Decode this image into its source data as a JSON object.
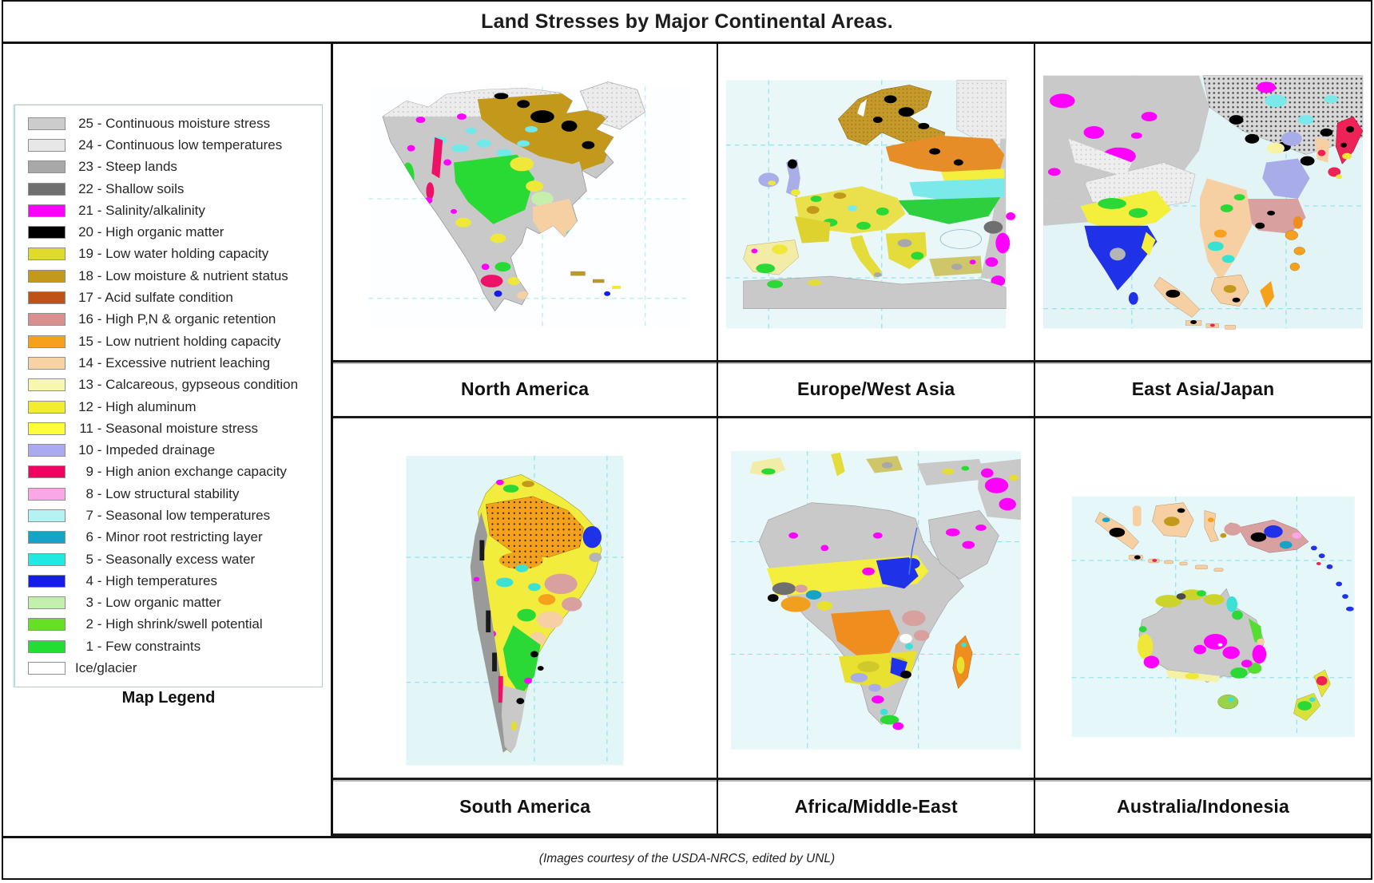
{
  "title": "Land Stresses by Major Continental Areas.",
  "footer_credit": "(Images courtesy of the USDA-NRCS, edited by UNL)",
  "legend": {
    "caption": "Map Legend",
    "items": [
      {
        "num": "25",
        "text": "Continuous moisture stress",
        "color": "#cccccc"
      },
      {
        "num": "24",
        "text": "Continuous low temperatures",
        "color": "#e7e7e7"
      },
      {
        "num": "23",
        "text": "Steep lands",
        "color": "#a8a8a8"
      },
      {
        "num": "22",
        "text": "Shallow soils",
        "color": "#6f6f6f"
      },
      {
        "num": "21",
        "text": "Salinity/alkalinity",
        "color": "#ff00ff"
      },
      {
        "num": "20",
        "text": "High organic matter",
        "color": "#000000"
      },
      {
        "num": "19",
        "text": "Low water holding capacity",
        "color": "#dedb2d"
      },
      {
        "num": "18",
        "text": "Low moisture & nutrient status",
        "color": "#c3991b"
      },
      {
        "num": "17",
        "text": "Acid sulfate condition",
        "color": "#bf5317"
      },
      {
        "num": "16",
        "text": "High P,N & organic retention",
        "color": "#d89090"
      },
      {
        "num": "15",
        "text": "Low nutrient holding capacity",
        "color": "#f5a11c"
      },
      {
        "num": "14",
        "text": "Excessive nutrient leaching",
        "color": "#f7d2a4"
      },
      {
        "num": "13",
        "text": "Calcareous, gypseous condition",
        "color": "#f7f7ae"
      },
      {
        "num": "12",
        "text": "High aluminum",
        "color": "#f0ee2e"
      },
      {
        "num": "11",
        "text": "Seasonal moisture stress",
        "color": "#fdfd3a"
      },
      {
        "num": "10",
        "text": "Impeded drainage",
        "color": "#abaaf0"
      },
      {
        "num": "9",
        "text": "High anion exchange capacity",
        "color": "#ef0460"
      },
      {
        "num": "8",
        "text": "Low structural stability",
        "color": "#f9a8e5"
      },
      {
        "num": "7",
        "text": "Seasonal low temperatures",
        "color": "#b5f3f3"
      },
      {
        "num": "6",
        "text": "Minor root restricting layer",
        "color": "#17a2c8"
      },
      {
        "num": "5",
        "text": "Seasonally excess water",
        "color": "#21e8e0"
      },
      {
        "num": "4",
        "text": "High temperatures",
        "color": "#161ce8"
      },
      {
        "num": "3",
        "text": "Low organic matter",
        "color": "#c4f0ad"
      },
      {
        "num": "2",
        "text": "High shrink/swell potential",
        "color": "#66e024"
      },
      {
        "num": "1",
        "text": "Few constraints",
        "color": "#23dd33"
      },
      {
        "num": "",
        "text": "Ice/glacier",
        "color": "#ffffff"
      }
    ]
  },
  "panels": [
    {
      "label": "North America"
    },
    {
      "label": "Europe/West Asia"
    },
    {
      "label": "East Asia/Japan"
    },
    {
      "label": "South America"
    },
    {
      "label": "Africa/Middle-East"
    },
    {
      "label": "Australia/Indonesia"
    }
  ]
}
